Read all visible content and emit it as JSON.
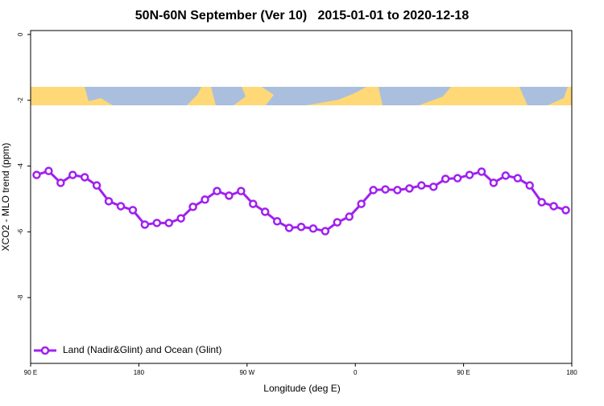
{
  "chart_data": {
    "type": "line",
    "title": "50N-60N September (Ver 10)   2015-01-01 to 2020-12-18",
    "x_label": "Longitude (deg E)",
    "y_label": "XCO2 - MLO trend (ppm)",
    "x": [
      95,
      105,
      115,
      125,
      135,
      145,
      155,
      165,
      175,
      185,
      195,
      205,
      215,
      225,
      235,
      245,
      255,
      265,
      275,
      285,
      295,
      305,
      315,
      325,
      335,
      345,
      355,
      365,
      375,
      385,
      395,
      405,
      415,
      425,
      435,
      445,
      455,
      465,
      475,
      485,
      495,
      505,
      515,
      525,
      535
    ],
    "series": [
      {
        "name": "Land (Nadir&Glint) and Ocean (Glint)",
        "color": "#a020f0",
        "values": [
          -4.27,
          -4.15,
          -4.51,
          -4.27,
          -4.34,
          -4.59,
          -5.07,
          -5.22,
          -5.34,
          -5.78,
          -5.73,
          -5.73,
          -5.59,
          -5.24,
          -5.02,
          -4.76,
          -4.9,
          -4.76,
          -5.15,
          -5.39,
          -5.68,
          -5.88,
          -5.85,
          -5.9,
          -5.98,
          -5.71,
          -5.54,
          -5.15,
          -4.73,
          -4.71,
          -4.73,
          -4.68,
          -4.59,
          -4.63,
          -4.39,
          -4.37,
          -4.27,
          -4.17,
          -4.51,
          -4.29,
          -4.37,
          -4.59,
          -5.1,
          -5.22,
          -5.34
        ]
      }
    ],
    "xlim": [
      90,
      540
    ],
    "xticks": [
      {
        "value": 90,
        "label": "90 E"
      },
      180,
      {
        "value": 270,
        "label": "90 W"
      },
      {
        "value": 360,
        "label": "0"
      },
      {
        "value": 450,
        "label": "90 E"
      },
      {
        "value": 540,
        "label": "180"
      }
    ],
    "ylim": [
      -10,
      0.12
    ],
    "yticks": [
      0,
      -2,
      -4,
      -6,
      -8
    ],
    "legend": "bottom-left"
  }
}
